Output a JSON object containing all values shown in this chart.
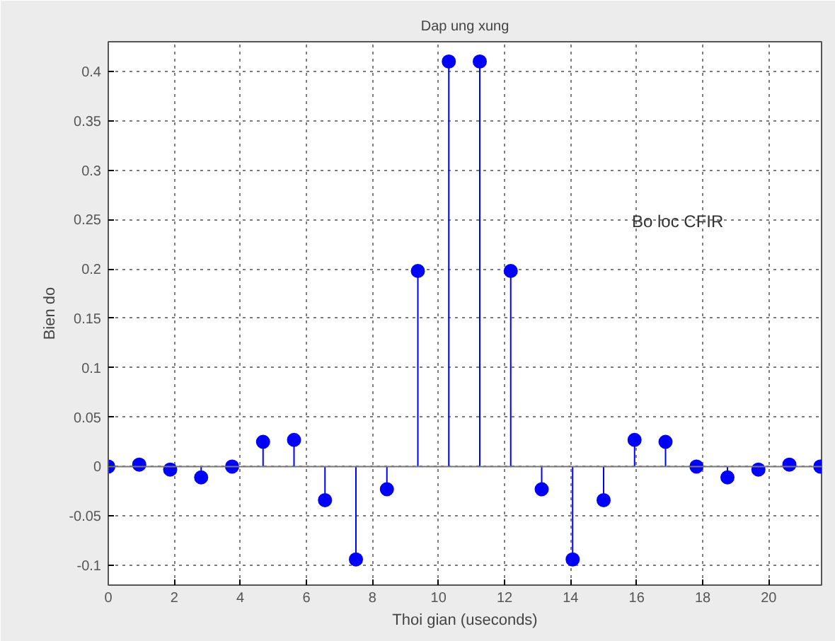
{
  "chart_data": {
    "type": "lollipop",
    "title": "Dap ung xung",
    "xlabel": "Thoi gian (useconds)",
    "ylabel": "Bien do",
    "x": [
      0,
      0.9375,
      1.875,
      2.8125,
      3.75,
      4.6875,
      5.625,
      6.5625,
      7.5,
      8.4375,
      9.375,
      10.3125,
      11.25,
      12.1875,
      13.125,
      14.0625,
      15.0,
      15.9375,
      16.875,
      17.8125,
      18.75,
      19.6875,
      20.625,
      21.5625
    ],
    "series": [
      {
        "color": "#0000ff",
        "values": [
          0,
          0.002,
          -0.003,
          -0.011,
          0,
          0.025,
          0.027,
          -0.034,
          -0.094,
          -0.023,
          0.198,
          0.41,
          0.41,
          0.198,
          -0.023,
          -0.094,
          -0.034,
          0.027,
          0.025,
          0,
          -0.011,
          -0.003,
          0.002,
          0
        ]
      }
    ],
    "xlim": [
      0,
      21.6
    ],
    "ylim": [
      -0.12,
      0.43
    ],
    "xticks": [
      0,
      2,
      4,
      6,
      8,
      10,
      12,
      14,
      16,
      18,
      20
    ],
    "yticks": [
      -0.1,
      -0.05,
      0,
      0.05,
      0.1,
      0.15,
      0.2,
      0.25,
      0.3,
      0.35,
      0.4
    ],
    "annotations": [
      "Bo loc CFIR"
    ],
    "grid": true,
    "marker": "circle"
  }
}
